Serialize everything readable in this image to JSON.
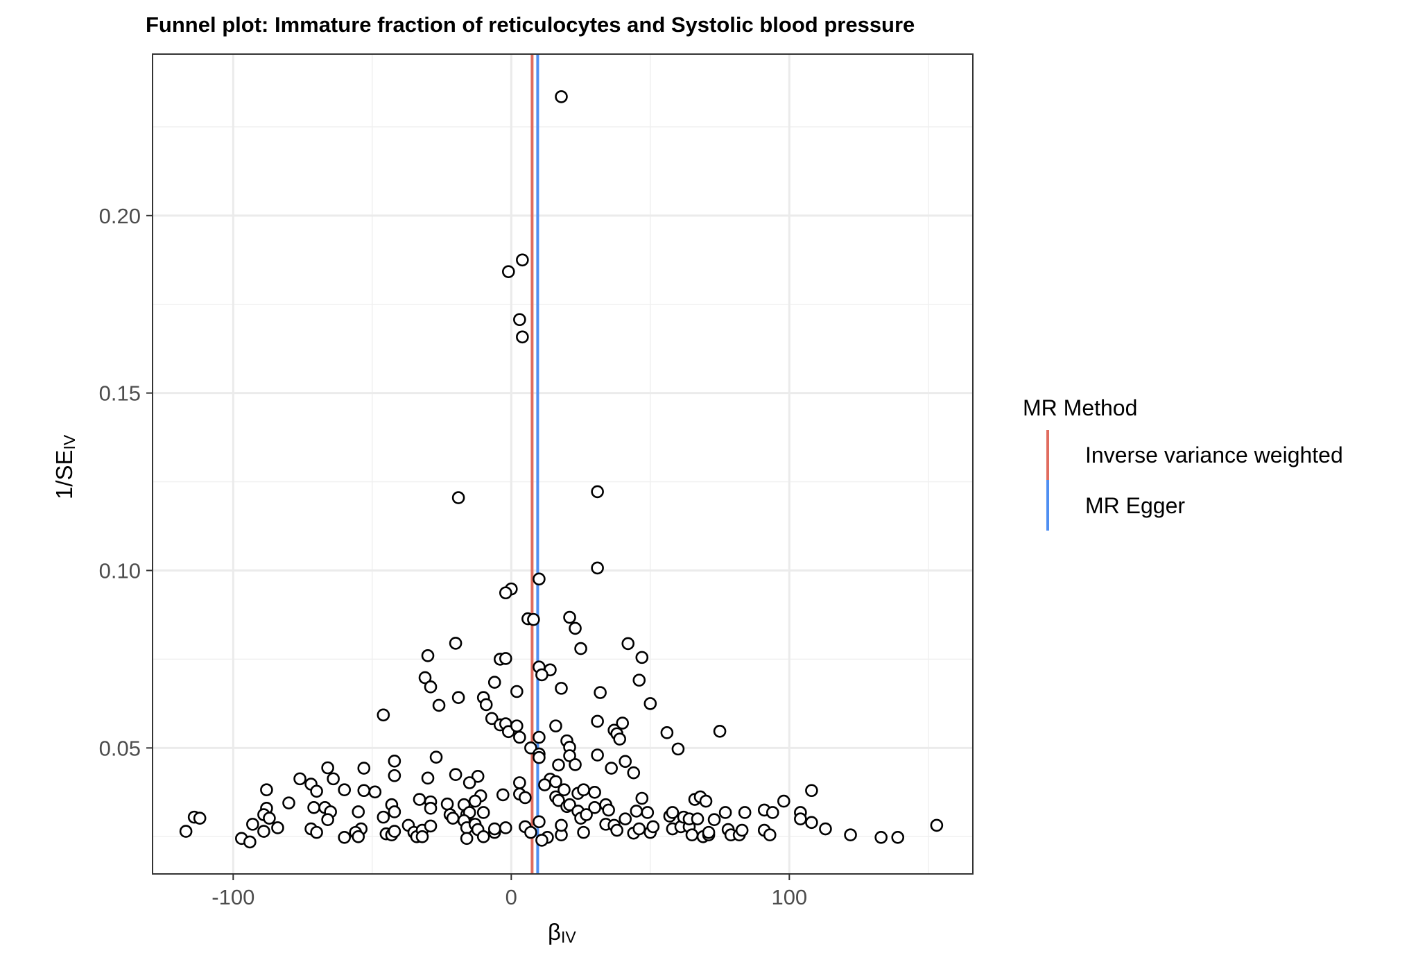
{
  "chart_data": {
    "type": "scatter",
    "title": "Funnel plot: Immature fraction of reticulocytes and Systolic blood pressure",
    "xlabel": "β",
    "xlabel_sub": "IV",
    "ylabel": "1/SE",
    "ylabel_sub": "IV",
    "xlim": [
      -129,
      166
    ],
    "ylim": [
      0.0145,
      0.2455
    ],
    "x_ticks": [
      -100,
      0,
      100
    ],
    "x_tick_labels": [
      "-100",
      "0",
      "100"
    ],
    "y_ticks": [
      0.05,
      0.1,
      0.15,
      0.2
    ],
    "y_tick_labels": [
      "0.05",
      "0.10",
      "0.15",
      "0.20"
    ],
    "grid": true,
    "legend": {
      "title": "MR Method",
      "position": "right",
      "entries": [
        {
          "label": "Inverse variance weighted",
          "color": "#E06C5F"
        },
        {
          "label": "MR Egger",
          "color": "#4F8FF2"
        }
      ]
    },
    "lines": [
      {
        "name": "Inverse variance weighted",
        "x": 7.5,
        "color": "#E06C5F"
      },
      {
        "name": "MR Egger",
        "x": 9.5,
        "color": "#4F8FF2"
      }
    ],
    "points": [
      [
        18,
        0.2335
      ],
      [
        4,
        0.1875
      ],
      [
        -1,
        0.1842
      ],
      [
        3,
        0.1707
      ],
      [
        4,
        0.1658
      ],
      [
        -19,
        0.1205
      ],
      [
        31,
        0.1222
      ],
      [
        31,
        0.1007
      ],
      [
        10,
        0.0976
      ],
      [
        0,
        0.0948
      ],
      [
        -2,
        0.0937
      ],
      [
        6,
        0.0864
      ],
      [
        8,
        0.0862
      ],
      [
        21,
        0.0868
      ],
      [
        23,
        0.0837
      ],
      [
        25,
        0.078
      ],
      [
        -20,
        0.0795
      ],
      [
        42,
        0.0794
      ],
      [
        -30,
        0.076
      ],
      [
        -4,
        0.075
      ],
      [
        -2,
        0.0752
      ],
      [
        47,
        0.0755
      ],
      [
        10,
        0.0728
      ],
      [
        14,
        0.072
      ],
      [
        11,
        0.0706
      ],
      [
        -31,
        0.0698
      ],
      [
        -29,
        0.0672
      ],
      [
        18,
        0.0668
      ],
      [
        2,
        0.0659
      ],
      [
        -6,
        0.0685
      ],
      [
        32,
        0.0656
      ],
      [
        46,
        0.0691
      ],
      [
        -19,
        0.0642
      ],
      [
        -10,
        0.0642
      ],
      [
        -26,
        0.062
      ],
      [
        -9,
        0.0622
      ],
      [
        50,
        0.0625
      ],
      [
        -46,
        0.0593
      ],
      [
        -7,
        0.0583
      ],
      [
        -4,
        0.0565
      ],
      [
        -2,
        0.0568
      ],
      [
        -1,
        0.0546
      ],
      [
        2,
        0.0562
      ],
      [
        16,
        0.0562
      ],
      [
        31,
        0.0575
      ],
      [
        40,
        0.057
      ],
      [
        37,
        0.055
      ],
      [
        38,
        0.054
      ],
      [
        39,
        0.0525
      ],
      [
        56,
        0.0543
      ],
      [
        75,
        0.0547
      ],
      [
        3,
        0.053
      ],
      [
        10,
        0.053
      ],
      [
        7,
        0.05
      ],
      [
        20,
        0.052
      ],
      [
        21,
        0.0502
      ],
      [
        10,
        0.0483
      ],
      [
        10,
        0.0473
      ],
      [
        21,
        0.0478
      ],
      [
        31,
        0.048
      ],
      [
        60,
        0.0497
      ],
      [
        -27,
        0.0474
      ],
      [
        -42,
        0.0463
      ],
      [
        17,
        0.0452
      ],
      [
        23,
        0.0453
      ],
      [
        41,
        0.0462
      ],
      [
        36,
        0.0443
      ],
      [
        44,
        0.043
      ],
      [
        -66,
        0.0444
      ],
      [
        -53,
        0.0443
      ],
      [
        -42,
        0.0422
      ],
      [
        -20,
        0.0425
      ],
      [
        -12,
        0.042
      ],
      [
        -30,
        0.0415
      ],
      [
        -15,
        0.0402
      ],
      [
        3,
        0.0402
      ],
      [
        14,
        0.0412
      ],
      [
        16,
        0.0405
      ],
      [
        12,
        0.0396
      ],
      [
        -76,
        0.0413
      ],
      [
        -64,
        0.0413
      ],
      [
        -72,
        0.0398
      ],
      [
        -70,
        0.0378
      ],
      [
        -53,
        0.038
      ],
      [
        -49,
        0.0376
      ],
      [
        -60,
        0.0382
      ],
      [
        -88,
        0.0382
      ],
      [
        -80,
        0.0345
      ],
      [
        3,
        0.037
      ],
      [
        -3,
        0.0368
      ],
      [
        -11,
        0.0365
      ],
      [
        5,
        0.036
      ],
      [
        16,
        0.0362
      ],
      [
        17,
        0.0352
      ],
      [
        19,
        0.0382
      ],
      [
        24,
        0.0372
      ],
      [
        26,
        0.0382
      ],
      [
        30,
        0.0375
      ],
      [
        47,
        0.0358
      ],
      [
        66,
        0.0355
      ],
      [
        68,
        0.0362
      ],
      [
        70,
        0.035
      ],
      [
        98,
        0.035
      ],
      [
        108,
        0.038
      ],
      [
        -33,
        0.0355
      ],
      [
        -29,
        0.0348
      ],
      [
        -23,
        0.0342
      ],
      [
        -13,
        0.035
      ],
      [
        -17,
        0.034
      ],
      [
        -29,
        0.033
      ],
      [
        -22,
        0.0312
      ],
      [
        -21,
        0.0302
      ],
      [
        -16,
        0.0312
      ],
      [
        -15,
        0.0318
      ],
      [
        -10,
        0.0318
      ],
      [
        20,
        0.0335
      ],
      [
        21,
        0.034
      ],
      [
        24,
        0.0322
      ],
      [
        30,
        0.0332
      ],
      [
        34,
        0.034
      ],
      [
        35,
        0.0325
      ],
      [
        45,
        0.0322
      ],
      [
        49,
        0.0318
      ],
      [
        -88,
        0.033
      ],
      [
        -71,
        0.0332
      ],
      [
        -67,
        0.0332
      ],
      [
        -65,
        0.032
      ],
      [
        -66,
        0.0298
      ],
      [
        -55,
        0.032
      ],
      [
        -43,
        0.034
      ],
      [
        -42,
        0.032
      ],
      [
        -46,
        0.0305
      ],
      [
        -114,
        0.0305
      ],
      [
        -112,
        0.0302
      ],
      [
        -89,
        0.0312
      ],
      [
        -87,
        0.0302
      ],
      [
        -93,
        0.0285
      ],
      [
        -84,
        0.0275
      ],
      [
        -89,
        0.0265
      ],
      [
        -117,
        0.0265
      ],
      [
        -72,
        0.0272
      ],
      [
        -70,
        0.0262
      ],
      [
        -54,
        0.0272
      ],
      [
        -56,
        0.0262
      ],
      [
        -55,
        0.025
      ],
      [
        -60,
        0.0248
      ],
      [
        -45,
        0.0258
      ],
      [
        -43,
        0.0255
      ],
      [
        -42,
        0.0265
      ],
      [
        -37,
        0.0282
      ],
      [
        -35,
        0.0262
      ],
      [
        -34,
        0.025
      ],
      [
        -32,
        0.0268
      ],
      [
        -32,
        0.025
      ],
      [
        -29,
        0.028
      ],
      [
        -17,
        0.0295
      ],
      [
        -16,
        0.0275
      ],
      [
        -13,
        0.0285
      ],
      [
        -12,
        0.027
      ],
      [
        -10,
        0.025
      ],
      [
        -16,
        0.0245
      ],
      [
        -6,
        0.0262
      ],
      [
        -6,
        0.0272
      ],
      [
        -2,
        0.0275
      ],
      [
        5,
        0.0278
      ],
      [
        7,
        0.0262
      ],
      [
        10,
        0.0292
      ],
      [
        13,
        0.0248
      ],
      [
        11,
        0.024
      ],
      [
        18,
        0.0255
      ],
      [
        18,
        0.0282
      ],
      [
        26,
        0.0262
      ],
      [
        25,
        0.0302
      ],
      [
        27,
        0.0312
      ],
      [
        34,
        0.0285
      ],
      [
        37,
        0.0282
      ],
      [
        38,
        0.0268
      ],
      [
        41,
        0.03
      ],
      [
        44,
        0.026
      ],
      [
        46,
        0.0272
      ],
      [
        50,
        0.0262
      ],
      [
        51,
        0.0278
      ],
      [
        57,
        0.0308
      ],
      [
        58,
        0.0272
      ],
      [
        58,
        0.0318
      ],
      [
        61,
        0.0278
      ],
      [
        62,
        0.0305
      ],
      [
        64,
        0.0278
      ],
      [
        64,
        0.03
      ],
      [
        65,
        0.0255
      ],
      [
        67,
        0.03
      ],
      [
        69,
        0.025
      ],
      [
        71,
        0.0255
      ],
      [
        71,
        0.0262
      ],
      [
        73,
        0.0298
      ],
      [
        77,
        0.0318
      ],
      [
        78,
        0.027
      ],
      [
        79,
        0.0255
      ],
      [
        82,
        0.0255
      ],
      [
        83,
        0.0268
      ],
      [
        84,
        0.0318
      ],
      [
        91,
        0.0325
      ],
      [
        91,
        0.0268
      ],
      [
        93,
        0.0255
      ],
      [
        94,
        0.0318
      ],
      [
        104,
        0.0318
      ],
      [
        104,
        0.03
      ],
      [
        108,
        0.029
      ],
      [
        113,
        0.0272
      ],
      [
        122,
        0.0255
      ],
      [
        133,
        0.0248
      ],
      [
        139,
        0.0248
      ],
      [
        153,
        0.0282
      ],
      [
        -97,
        0.0245
      ],
      [
        -94,
        0.0235
      ]
    ]
  }
}
